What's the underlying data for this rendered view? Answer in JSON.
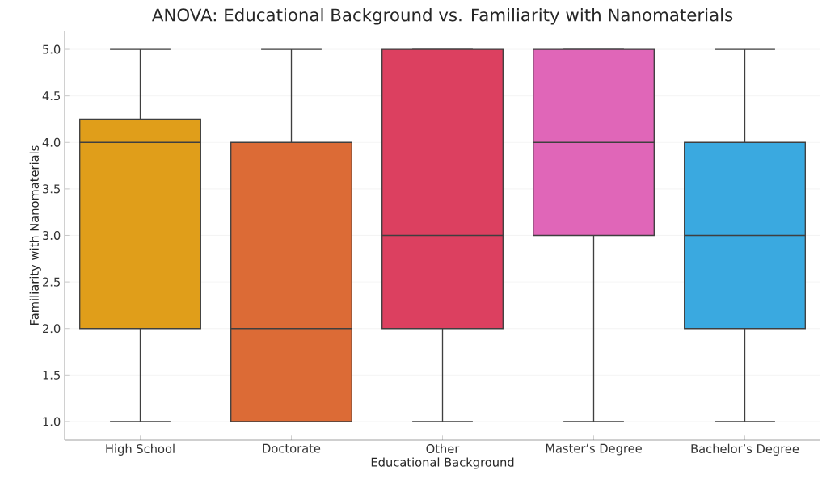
{
  "chart_data": {
    "type": "box",
    "title": "ANOVA: Educational Background vs. Familiarity with Nanomaterials",
    "xlabel": "Educational Background",
    "ylabel": "Familiarity with Nanomaterials",
    "categories": [
      "High School",
      "Doctorate",
      "Other",
      "Master’s Degree",
      "Bachelor’s Degree"
    ],
    "boxes": [
      {
        "low": 1,
        "q1": 2,
        "median": 4,
        "q3": 4.25,
        "high": 5
      },
      {
        "low": 1,
        "q1": 1,
        "median": 2,
        "q3": 4,
        "high": 5
      },
      {
        "low": 1,
        "q1": 2,
        "median": 3,
        "q3": 5,
        "high": 5
      },
      {
        "low": 1,
        "q1": 3,
        "median": 4,
        "q3": 5,
        "high": 5
      },
      {
        "low": 1,
        "q1": 2,
        "median": 3,
        "q3": 4,
        "high": 5
      }
    ],
    "colors": [
      "#e09e1a",
      "#dc6b36",
      "#dc4060",
      "#e066b8",
      "#3aa9e0"
    ],
    "ylim": [
      0.8,
      5.2
    ],
    "yticks": [
      {
        "value": 1,
        "label": "1.0"
      },
      {
        "value": 1.5,
        "label": "1.5"
      },
      {
        "value": 2,
        "label": "2.0"
      },
      {
        "value": 2.5,
        "label": "2.5"
      },
      {
        "value": 3,
        "label": "3.0"
      },
      {
        "value": 3.5,
        "label": "3.5"
      },
      {
        "value": 4,
        "label": "4.0"
      },
      {
        "value": 4.5,
        "label": "4.5"
      },
      {
        "value": 5,
        "label": "5.0"
      }
    ],
    "grid": "y"
  }
}
